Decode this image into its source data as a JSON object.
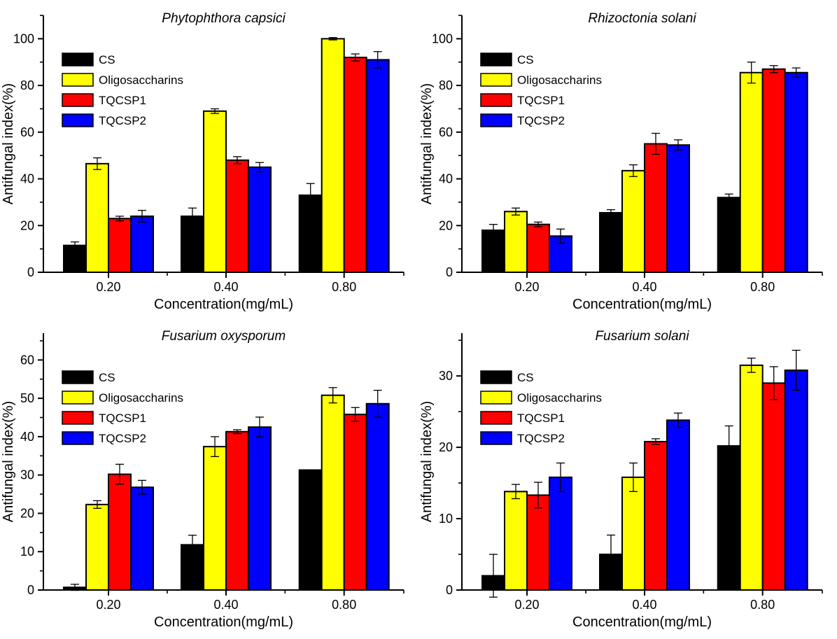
{
  "figure": {
    "background": "#ffffff",
    "shared_y_axis_label": "Antifungal index(%)",
    "shared_x_axis_label": "Concentration(mg/mL)",
    "legend_entries": [
      "CS",
      "Oligosaccharins",
      "TQCSP1",
      "TQCSP2"
    ],
    "series_colors": {
      "CS": "#000000",
      "Oligosaccharins": "#ffff00",
      "TQCSP1": "#ff0000",
      "TQCSP2": "#0000ff"
    }
  },
  "chart_data": [
    {
      "type": "bar",
      "title": "Phytophthora capsici",
      "xlabel": "Concentration(mg/mL)",
      "ylabel": "Antifungal index(%)",
      "categories": [
        "0.20",
        "0.40",
        "0.80"
      ],
      "ylim": [
        0,
        110
      ],
      "yticks_major": [
        0,
        20,
        40,
        60,
        80,
        100
      ],
      "ytick_minor_step": 10,
      "grid": false,
      "legend_position": "upper-left",
      "series": [
        {
          "name": "CS",
          "color": "#000000",
          "values": [
            11.5,
            24,
            33
          ],
          "errors": [
            1.5,
            3.5,
            5
          ]
        },
        {
          "name": "Oligosaccharins",
          "color": "#ffff00",
          "values": [
            46.5,
            69,
            100
          ],
          "errors": [
            2.5,
            1,
            0.5
          ]
        },
        {
          "name": "TQCSP1",
          "color": "#ff0000",
          "values": [
            23,
            48,
            92
          ],
          "errors": [
            1,
            1.5,
            1.5
          ]
        },
        {
          "name": "TQCSP2",
          "color": "#0000ff",
          "values": [
            24,
            45,
            91
          ],
          "errors": [
            2.5,
            2,
            3.5
          ]
        }
      ]
    },
    {
      "type": "bar",
      "title": "Rhizoctonia solani",
      "xlabel": "Concentration(mg/mL)",
      "ylabel": "Antifungal index(%)",
      "categories": [
        "0.20",
        "0.40",
        "0.80"
      ],
      "ylim": [
        0,
        110
      ],
      "yticks_major": [
        0,
        20,
        40,
        60,
        80,
        100
      ],
      "ytick_minor_step": 10,
      "grid": false,
      "legend_position": "upper-left",
      "series": [
        {
          "name": "CS",
          "color": "#000000",
          "values": [
            18,
            25.5,
            32
          ],
          "errors": [
            2.5,
            1.3,
            1.5
          ]
        },
        {
          "name": "Oligosaccharins",
          "color": "#ffff00",
          "values": [
            26,
            43.5,
            85.5
          ],
          "errors": [
            1.5,
            2.5,
            4.5
          ]
        },
        {
          "name": "TQCSP1",
          "color": "#ff0000",
          "values": [
            20.5,
            55,
            87
          ],
          "errors": [
            1,
            4.5,
            1.5
          ]
        },
        {
          "name": "TQCSP2",
          "color": "#0000ff",
          "values": [
            15.5,
            54.5,
            85.5
          ],
          "errors": [
            3,
            2.2,
            2
          ]
        }
      ]
    },
    {
      "type": "bar",
      "title": "Fusarium oxysporum",
      "xlabel": "Concentration(mg/mL)",
      "ylabel": "Antifungal index(%)",
      "categories": [
        "0.20",
        "0.40",
        "0.80"
      ],
      "ylim": [
        0,
        67
      ],
      "yticks_major": [
        0,
        10,
        20,
        30,
        40,
        50,
        60
      ],
      "ytick_minor_step": 5,
      "grid": false,
      "legend_position": "upper-left",
      "series": [
        {
          "name": "CS",
          "color": "#000000",
          "values": [
            0.7,
            11.8,
            31.3
          ],
          "errors": [
            0.8,
            2.5,
            0
          ]
        },
        {
          "name": "Oligosaccharins",
          "color": "#ffff00",
          "values": [
            22.3,
            37.4,
            50.8
          ],
          "errors": [
            1,
            2.6,
            2
          ]
        },
        {
          "name": "TQCSP1",
          "color": "#ff0000",
          "values": [
            30.2,
            41.3,
            45.8
          ],
          "errors": [
            2.6,
            0.5,
            1.8
          ]
        },
        {
          "name": "TQCSP2",
          "color": "#0000ff",
          "values": [
            26.8,
            42.5,
            48.6
          ],
          "errors": [
            1.8,
            2.6,
            3.5
          ]
        }
      ]
    },
    {
      "type": "bar",
      "title": "Fusarium solani",
      "xlabel": "Concentration(mg/mL)",
      "ylabel": "Antifungal index(%)",
      "categories": [
        "0.20",
        "0.40",
        "0.80"
      ],
      "ylim": [
        0,
        36
      ],
      "yticks_major": [
        0,
        10,
        20,
        30
      ],
      "ytick_minor_step": 5,
      "grid": false,
      "legend_position": "upper-left",
      "series": [
        {
          "name": "CS",
          "color": "#000000",
          "values": [
            2,
            5,
            20.2
          ],
          "errors": [
            3,
            2.7,
            2.8
          ]
        },
        {
          "name": "Oligosaccharins",
          "color": "#ffff00",
          "values": [
            13.8,
            15.8,
            31.5
          ],
          "errors": [
            1,
            2,
            1
          ]
        },
        {
          "name": "TQCSP1",
          "color": "#ff0000",
          "values": [
            13.3,
            20.8,
            29
          ],
          "errors": [
            1.8,
            0.4,
            2.3
          ]
        },
        {
          "name": "TQCSP2",
          "color": "#0000ff",
          "values": [
            15.8,
            23.8,
            30.8
          ],
          "errors": [
            2,
            1,
            2.8
          ]
        }
      ]
    }
  ]
}
